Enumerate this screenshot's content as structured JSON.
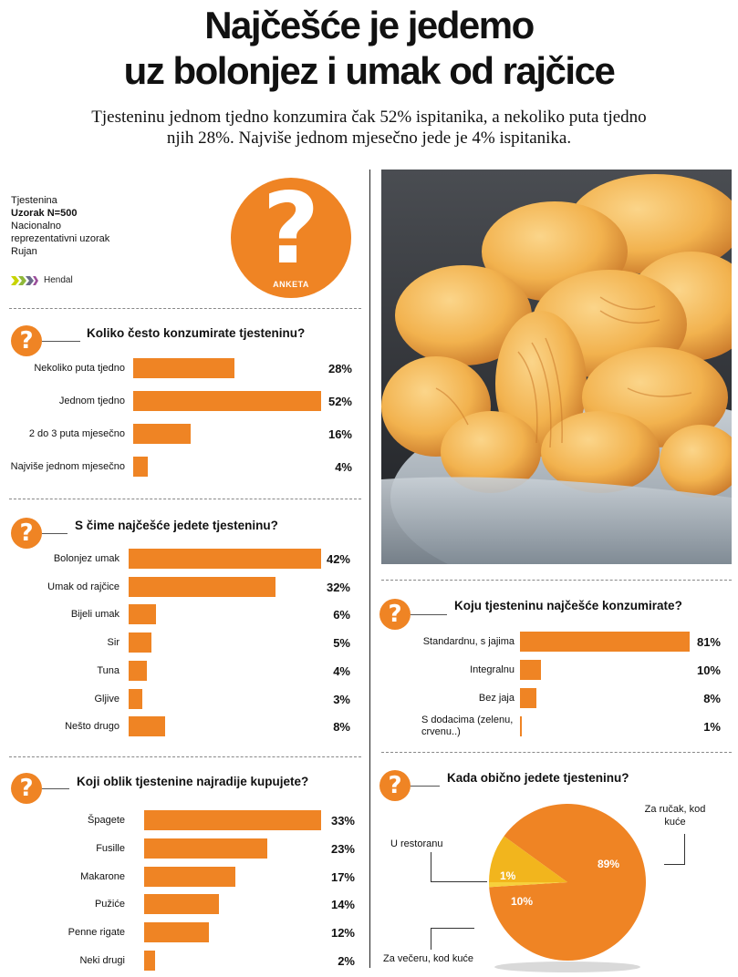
{
  "header": {
    "title_line1": "Najčešće je jedemo",
    "title_line2": "uz bolonjez i umak od rajčice",
    "subtitle_line1": "Tjesteninu jednom tjedno konzumira čak 52% ispitanika, a nekoliko puta tjedno",
    "subtitle_line2": "njih 28%. Najviše jednom mjesečno jede je 4% ispitanika."
  },
  "meta": {
    "line1": "Tjestenina",
    "line2": "Uzorak N=500",
    "line3": "Nacionalno",
    "line4": "reprezentativni uzorak",
    "line5": "Rujan",
    "logo": "Hendal"
  },
  "badge": {
    "symbol": "?",
    "label": "ANKETA"
  },
  "colors": {
    "accent": "#ef8424",
    "pie_secondary": "#f2b51d",
    "pie_small": "#f7d03c"
  },
  "icons": {
    "question": "?"
  },
  "chart_data": [
    {
      "type": "bar",
      "title": "Koliko često konzumirate tjesteninu?",
      "categories": [
        "Nekoliko puta tjedno",
        "Jednom tjedno",
        "2 do 3 puta mjesečno",
        "Najviše jednom mjesečno"
      ],
      "values": [
        28,
        52,
        16,
        4
      ],
      "value_labels": [
        "28%",
        "52%",
        "16%",
        "4%"
      ]
    },
    {
      "type": "bar",
      "title": "S čime najčešće jedete tjesteninu?",
      "categories": [
        "Bolonjez umak",
        "Umak od rajčice",
        "Bijeli umak",
        "Sir",
        "Tuna",
        "Gljive",
        "Nešto drugo"
      ],
      "values": [
        42,
        32,
        6,
        5,
        4,
        3,
        8
      ],
      "value_labels": [
        "42%",
        "32%",
        "6%",
        "5%",
        "4%",
        "3%",
        "8%"
      ]
    },
    {
      "type": "bar",
      "title": "Koji oblik tjestenine najradije kupujete?",
      "categories": [
        "Špagete",
        "Fusille",
        "Makarone",
        "Pužiće",
        "Penne rigate",
        "Neki drugi"
      ],
      "values": [
        33,
        23,
        17,
        14,
        12,
        2
      ],
      "value_labels": [
        "33%",
        "23%",
        "17%",
        "14%",
        "12%",
        "2%"
      ]
    },
    {
      "type": "bar",
      "title": "Koju tjesteninu najčešće konzumirate?",
      "categories": [
        "Standardnu, s jajima",
        "Integralnu",
        "Bez jaja",
        "S dodacima (zelenu, crvenu..)"
      ],
      "values": [
        81,
        10,
        8,
        1
      ],
      "value_labels": [
        "81%",
        "10%",
        "8%",
        "1%"
      ]
    },
    {
      "type": "pie",
      "title": "Kada obično jedete tjesteninu?",
      "categories": [
        "Za ručak, kod kuće",
        "Za večeru, kod kuće",
        "U restoranu"
      ],
      "values": [
        89,
        10,
        1
      ],
      "value_labels": [
        "89%",
        "10%",
        "1%"
      ]
    }
  ]
}
